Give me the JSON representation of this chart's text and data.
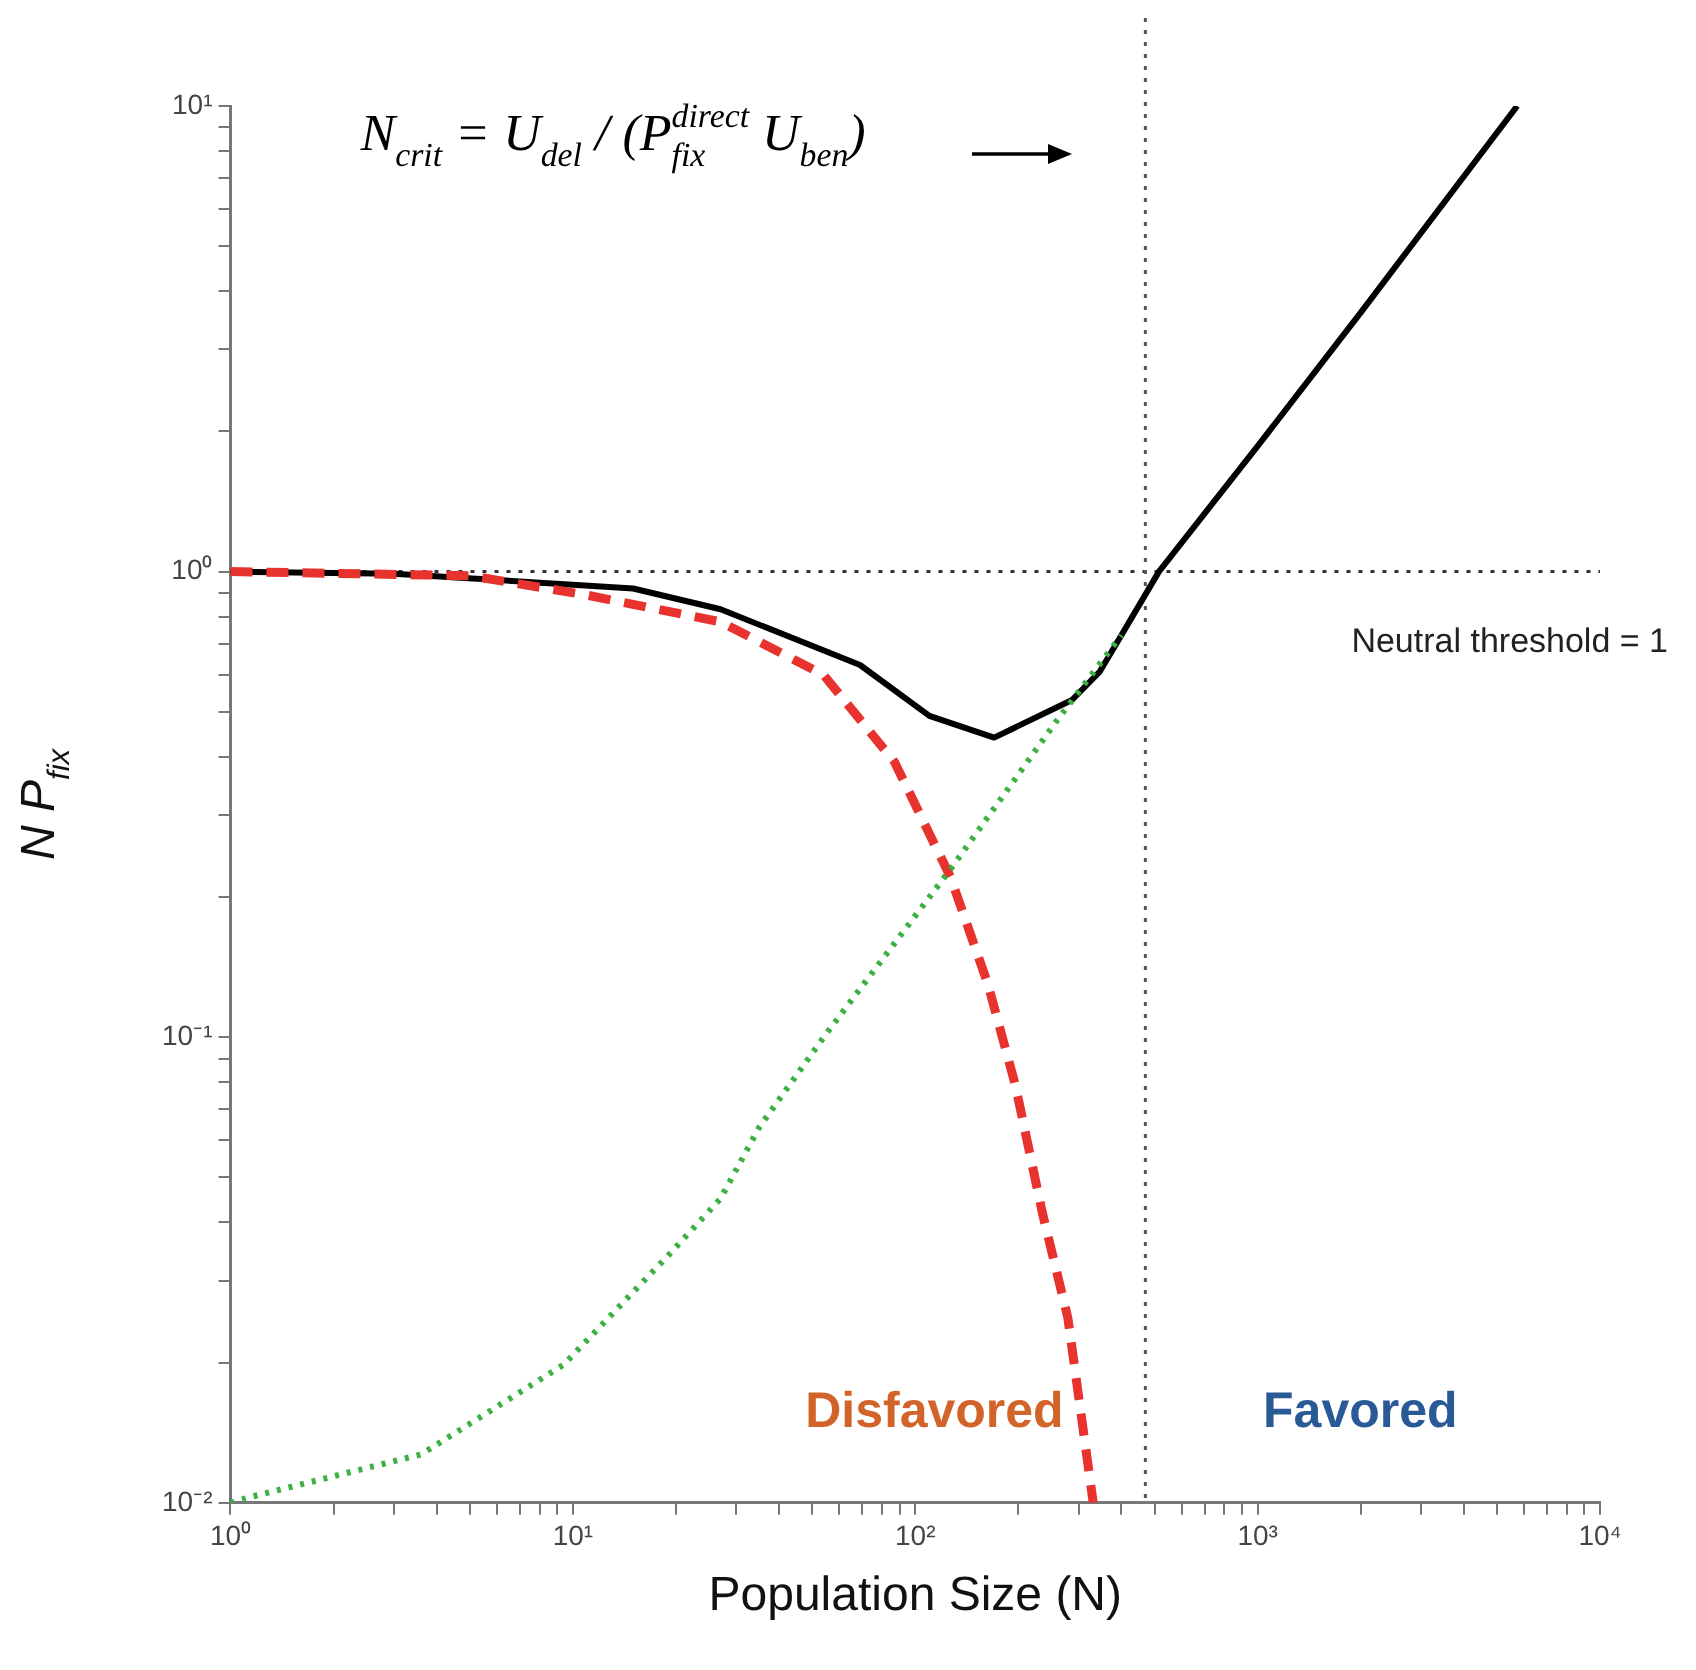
{
  "chart_data": {
    "type": "line",
    "xlabel": "Population Size (N)",
    "ylabel": "N P$_{fix}$",
    "log": "xy",
    "grid": false,
    "legend": false,
    "marker": "none",
    "xlim": [
      1,
      10000
    ],
    "ylim": [
      0.01,
      10
    ],
    "xticks": [
      {
        "value": 1,
        "label": "10⁰"
      },
      {
        "value": 2,
        "label": null
      },
      {
        "value": 3,
        "label": null
      },
      {
        "value": 4,
        "label": null
      },
      {
        "value": 5,
        "label": null
      },
      {
        "value": 6,
        "label": null
      },
      {
        "value": 7,
        "label": null
      },
      {
        "value": 8,
        "label": null
      },
      {
        "value": 9,
        "label": null
      },
      {
        "value": 10,
        "label": "10¹"
      },
      {
        "value": 20,
        "label": null
      },
      {
        "value": 30,
        "label": null
      },
      {
        "value": 40,
        "label": null
      },
      {
        "value": 50,
        "label": null
      },
      {
        "value": 60,
        "label": null
      },
      {
        "value": 70,
        "label": null
      },
      {
        "value": 80,
        "label": null
      },
      {
        "value": 90,
        "label": null
      },
      {
        "value": 100,
        "label": "10²"
      },
      {
        "value": 200,
        "label": null
      },
      {
        "value": 300,
        "label": null
      },
      {
        "value": 400,
        "label": null
      },
      {
        "value": 500,
        "label": null
      },
      {
        "value": 600,
        "label": null
      },
      {
        "value": 700,
        "label": null
      },
      {
        "value": 800,
        "label": null
      },
      {
        "value": 900,
        "label": null
      },
      {
        "value": 1000,
        "label": "10³"
      },
      {
        "value": 2000,
        "label": null
      },
      {
        "value": 3000,
        "label": null
      },
      {
        "value": 4000,
        "label": null
      },
      {
        "value": 5000,
        "label": null
      },
      {
        "value": 6000,
        "label": null
      },
      {
        "value": 7000,
        "label": null
      },
      {
        "value": 8000,
        "label": null
      },
      {
        "value": 9000,
        "label": null
      },
      {
        "value": 10000,
        "label": "10⁴"
      }
    ],
    "yticks": [
      {
        "value": 0.01,
        "label": "10⁻²"
      },
      {
        "value": 0.02,
        "label": null
      },
      {
        "value": 0.03,
        "label": null
      },
      {
        "value": 0.04,
        "label": null
      },
      {
        "value": 0.05,
        "label": null
      },
      {
        "value": 0.06,
        "label": null
      },
      {
        "value": 0.07,
        "label": null
      },
      {
        "value": 0.08,
        "label": null
      },
      {
        "value": 0.09,
        "label": null
      },
      {
        "value": 0.1,
        "label": "10⁻¹"
      },
      {
        "value": 0.2,
        "label": null
      },
      {
        "value": 0.3,
        "label": null
      },
      {
        "value": 0.4,
        "label": null
      },
      {
        "value": 0.5,
        "label": null
      },
      {
        "value": 0.6,
        "label": null
      },
      {
        "value": 0.7,
        "label": null
      },
      {
        "value": 0.8,
        "label": null
      },
      {
        "value": 0.9,
        "label": null
      },
      {
        "value": 1,
        "label": "10⁰"
      },
      {
        "value": 2,
        "label": null
      },
      {
        "value": 3,
        "label": null
      },
      {
        "value": 4,
        "label": null
      },
      {
        "value": 5,
        "label": null
      },
      {
        "value": 6,
        "label": null
      },
      {
        "value": 7,
        "label": null
      },
      {
        "value": 8,
        "label": null
      },
      {
        "value": 9,
        "label": null
      },
      {
        "value": 10,
        "label": "10¹"
      }
    ],
    "series": [
      {
        "color": "#3cb043",
        "line_style": "dotted",
        "x": [
          1,
          1.15,
          3.6,
          9.4,
          19,
          27,
          35,
          54,
          127,
          260,
          400
        ],
        "values": [
          0.01,
          0.0103,
          0.0127,
          0.0198,
          0.034,
          0.045,
          0.064,
          0.1,
          0.23,
          0.48,
          0.73
        ]
      },
      {
        "color": "#e8322e",
        "line_style": "dashed",
        "x": [
          1,
          5,
          11,
          27,
          54,
          87,
          127,
          163,
          196,
          235,
          279,
          331
        ],
        "values": [
          1,
          0.98,
          0.89,
          0.78,
          0.6,
          0.39,
          0.22,
          0.13,
          0.079,
          0.042,
          0.025,
          0.01
        ]
      },
      {
        "color": "#000000",
        "line_style": "solid",
        "x": [
          1,
          3,
          15,
          27,
          69,
          110,
          170,
          287,
          346,
          400,
          515,
          1000,
          2000,
          5730
        ],
        "values": [
          1,
          0.99,
          0.92,
          0.83,
          0.63,
          0.49,
          0.44,
          0.53,
          0.61,
          0.73,
          1,
          1.86,
          3.6,
          10
        ]
      }
    ],
    "ref_lines": [
      {
        "axis": "y",
        "value": 1,
        "label": "Neutral threshold = 1",
        "color": "#333333",
        "line_style": "dotted"
      },
      {
        "axis": "x",
        "value": 470,
        "label": null,
        "color": "#555555",
        "line_style": "dotted"
      }
    ],
    "annotations": [
      "N$_{crit}$ = U$_{del}$ / (P$_{fix}$$^{direct}$ U$_{ben}$)",
      "Disfavored",
      "Favored"
    ]
  }
}
